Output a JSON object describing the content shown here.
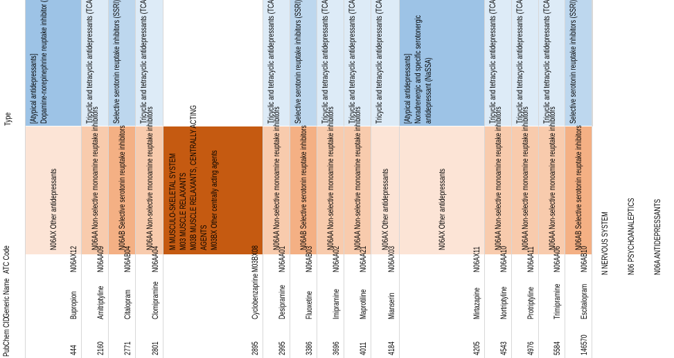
{
  "headers": {
    "pubchem_cid": "PubChem CID",
    "generic_name": "Generic Name",
    "atc_code": "ATC Code",
    "type": "Type"
  },
  "rows": [
    {
      "cid": "444",
      "name": "Bupropion",
      "atc": "N06AX12",
      "atc_text": [
        "N06AX Other antidepressants"
      ],
      "type_text": [
        "[Atypical antidepressants]",
        "Dopamine-norepinephrine reuptake inhibitor (DNRI)"
      ],
      "atc_bg": "#fce4d6",
      "type_bg": "#9dc3e6"
    },
    {
      "cid": "2160",
      "name": "Amitriptyline",
      "atc": "N06AA09",
      "atc_text": [
        "N06AA Non-selective monoamine reuptake inhibitors"
      ],
      "type_text": [
        "Tricyclic and tetracyclic antidepressants (TCA)"
      ],
      "atc_bg": "#f8cbad",
      "type_bg": "#ddebf7"
    },
    {
      "cid": "2771",
      "name": "Citalopram",
      "atc": "N06AB04",
      "atc_text": [
        "N06AB Selective serotonin reuptake inhibitors"
      ],
      "type_text": [
        "Selective serotonin reuptake inhibitors (SSRI)"
      ],
      "atc_bg": "#f4b084",
      "type_bg": "#bdd7ee"
    },
    {
      "cid": "2801",
      "name": "Clomipramine",
      "atc": "N06AA04",
      "atc_text": [
        "N06AA Non-selective monoamine reuptake inhibitors"
      ],
      "type_text": [
        "Tricyclic and tetracyclic antidepressants (TCA)"
      ],
      "atc_bg": "#f8cbad",
      "type_bg": "#ddebf7"
    },
    {
      "cid": "2895",
      "name": "Cyclobenzaprine",
      "atc": "M03BX08",
      "atc_text": [
        "M MUSCULO-SKELETAL SYSTEM",
        "M03 MUSCLE RELAXANTS",
        "M03B MUSCLE RELAXANTS, CENTRALLY ACTING",
        "AGENTS",
        "M03BX Other centrally acting agents"
      ],
      "type_text": [],
      "atc_bg": "#c55a11",
      "type_bg": "#ffffff"
    },
    {
      "cid": "2995",
      "name": "Desipramine",
      "atc": "N06AA01",
      "atc_text": [
        "N06AA Non-selective monoamine reuptake inhibitors"
      ],
      "type_text": [
        "Tricyclic and tetracyclic antidepressants (TCA)"
      ],
      "atc_bg": "#f8cbad",
      "type_bg": "#ddebf7"
    },
    {
      "cid": "3386",
      "name": "Fluoxetine",
      "atc": "N06AB03",
      "atc_text": [
        "N06AB Selective serotonin reuptake inhibitors"
      ],
      "type_text": [
        "Selective serotonin reuptake inhibitors (SSRI)"
      ],
      "atc_bg": "#f4b084",
      "type_bg": "#bdd7ee"
    },
    {
      "cid": "3696",
      "name": "Imipramine",
      "atc": "N06AA02",
      "atc_text": [
        "N06AA Non-selective monoamine reuptake inhibitors"
      ],
      "type_text": [
        "Tricyclic and tetracyclic antidepressants (TCA)"
      ],
      "atc_bg": "#f8cbad",
      "type_bg": "#ddebf7"
    },
    {
      "cid": "4011",
      "name": "Maprotiline",
      "atc": "N06AA21",
      "atc_text": [
        "N06AA Non-selective monoamine reuptake inhibitors"
      ],
      "type_text": [
        "Tricyclic and tetracyclic antidepressants (TCA)"
      ],
      "atc_bg": "#f8cbad",
      "type_bg": "#ddebf7"
    },
    {
      "cid": "4184",
      "name": "Mianserin",
      "atc": "N06AX03",
      "atc_text": [
        "N06AX Other antidepressants"
      ],
      "type_text": [
        "Tricyclic and tetracyclic antidepressants (TCA)"
      ],
      "atc_bg": "#fce4d6",
      "type_bg": "#ddebf7"
    },
    {
      "cid": "4205",
      "name": "Mirtazapine",
      "atc": "N06AX11",
      "atc_text": [
        "N06AX Other antidepressants"
      ],
      "type_text": [
        "[Atypical antidepressants]",
        "Noradrenergic and specific serotonergic",
        "antidepressant (NaSSA)"
      ],
      "atc_bg": "#fce4d6",
      "type_bg": "#9dc3e6"
    },
    {
      "cid": "4543",
      "name": "Nortriptyline",
      "atc": "N06AA10",
      "atc_text": [
        "N06AA Non-selective monoamine reuptake inhibitors"
      ],
      "type_text": [
        "Tricyclic and tetracyclic antidepressants (TCA)"
      ],
      "atc_bg": "#f8cbad",
      "type_bg": "#ddebf7"
    },
    {
      "cid": "4976",
      "name": "Protriptyline",
      "atc": "N06AA11",
      "atc_text": [
        "N06AA Non-selective monoamine reuptake inhibitors"
      ],
      "type_text": [
        "Tricyclic and tetracyclic antidepressants (TCA)"
      ],
      "atc_bg": "#f8cbad",
      "type_bg": "#ddebf7"
    },
    {
      "cid": "5584",
      "name": "Trimipramine",
      "atc": "N06AA06",
      "atc_text": [
        "N06AA Non-selective monoamine reuptake inhibitors"
      ],
      "type_text": [
        "Tricyclic and tetracyclic antidepressants (TCA)"
      ],
      "atc_bg": "#f8cbad",
      "type_bg": "#ddebf7"
    },
    {
      "cid": "146570",
      "name": "Escitalopram",
      "atc": "N06AB10",
      "atc_text": [
        "N06AB Selective serotonin reuptake inhibitors"
      ],
      "type_text": [
        "Selective serotonin reuptake inhibitors (SSRI)"
      ],
      "atc_bg": "#f4b084",
      "type_bg": "#bdd7ee"
    }
  ],
  "legend": [
    "N NERVOUS SYSTEM",
    "N06 PSYCHOANALEPTICS",
    "N06A ANTIDEPRESSANTS"
  ]
}
